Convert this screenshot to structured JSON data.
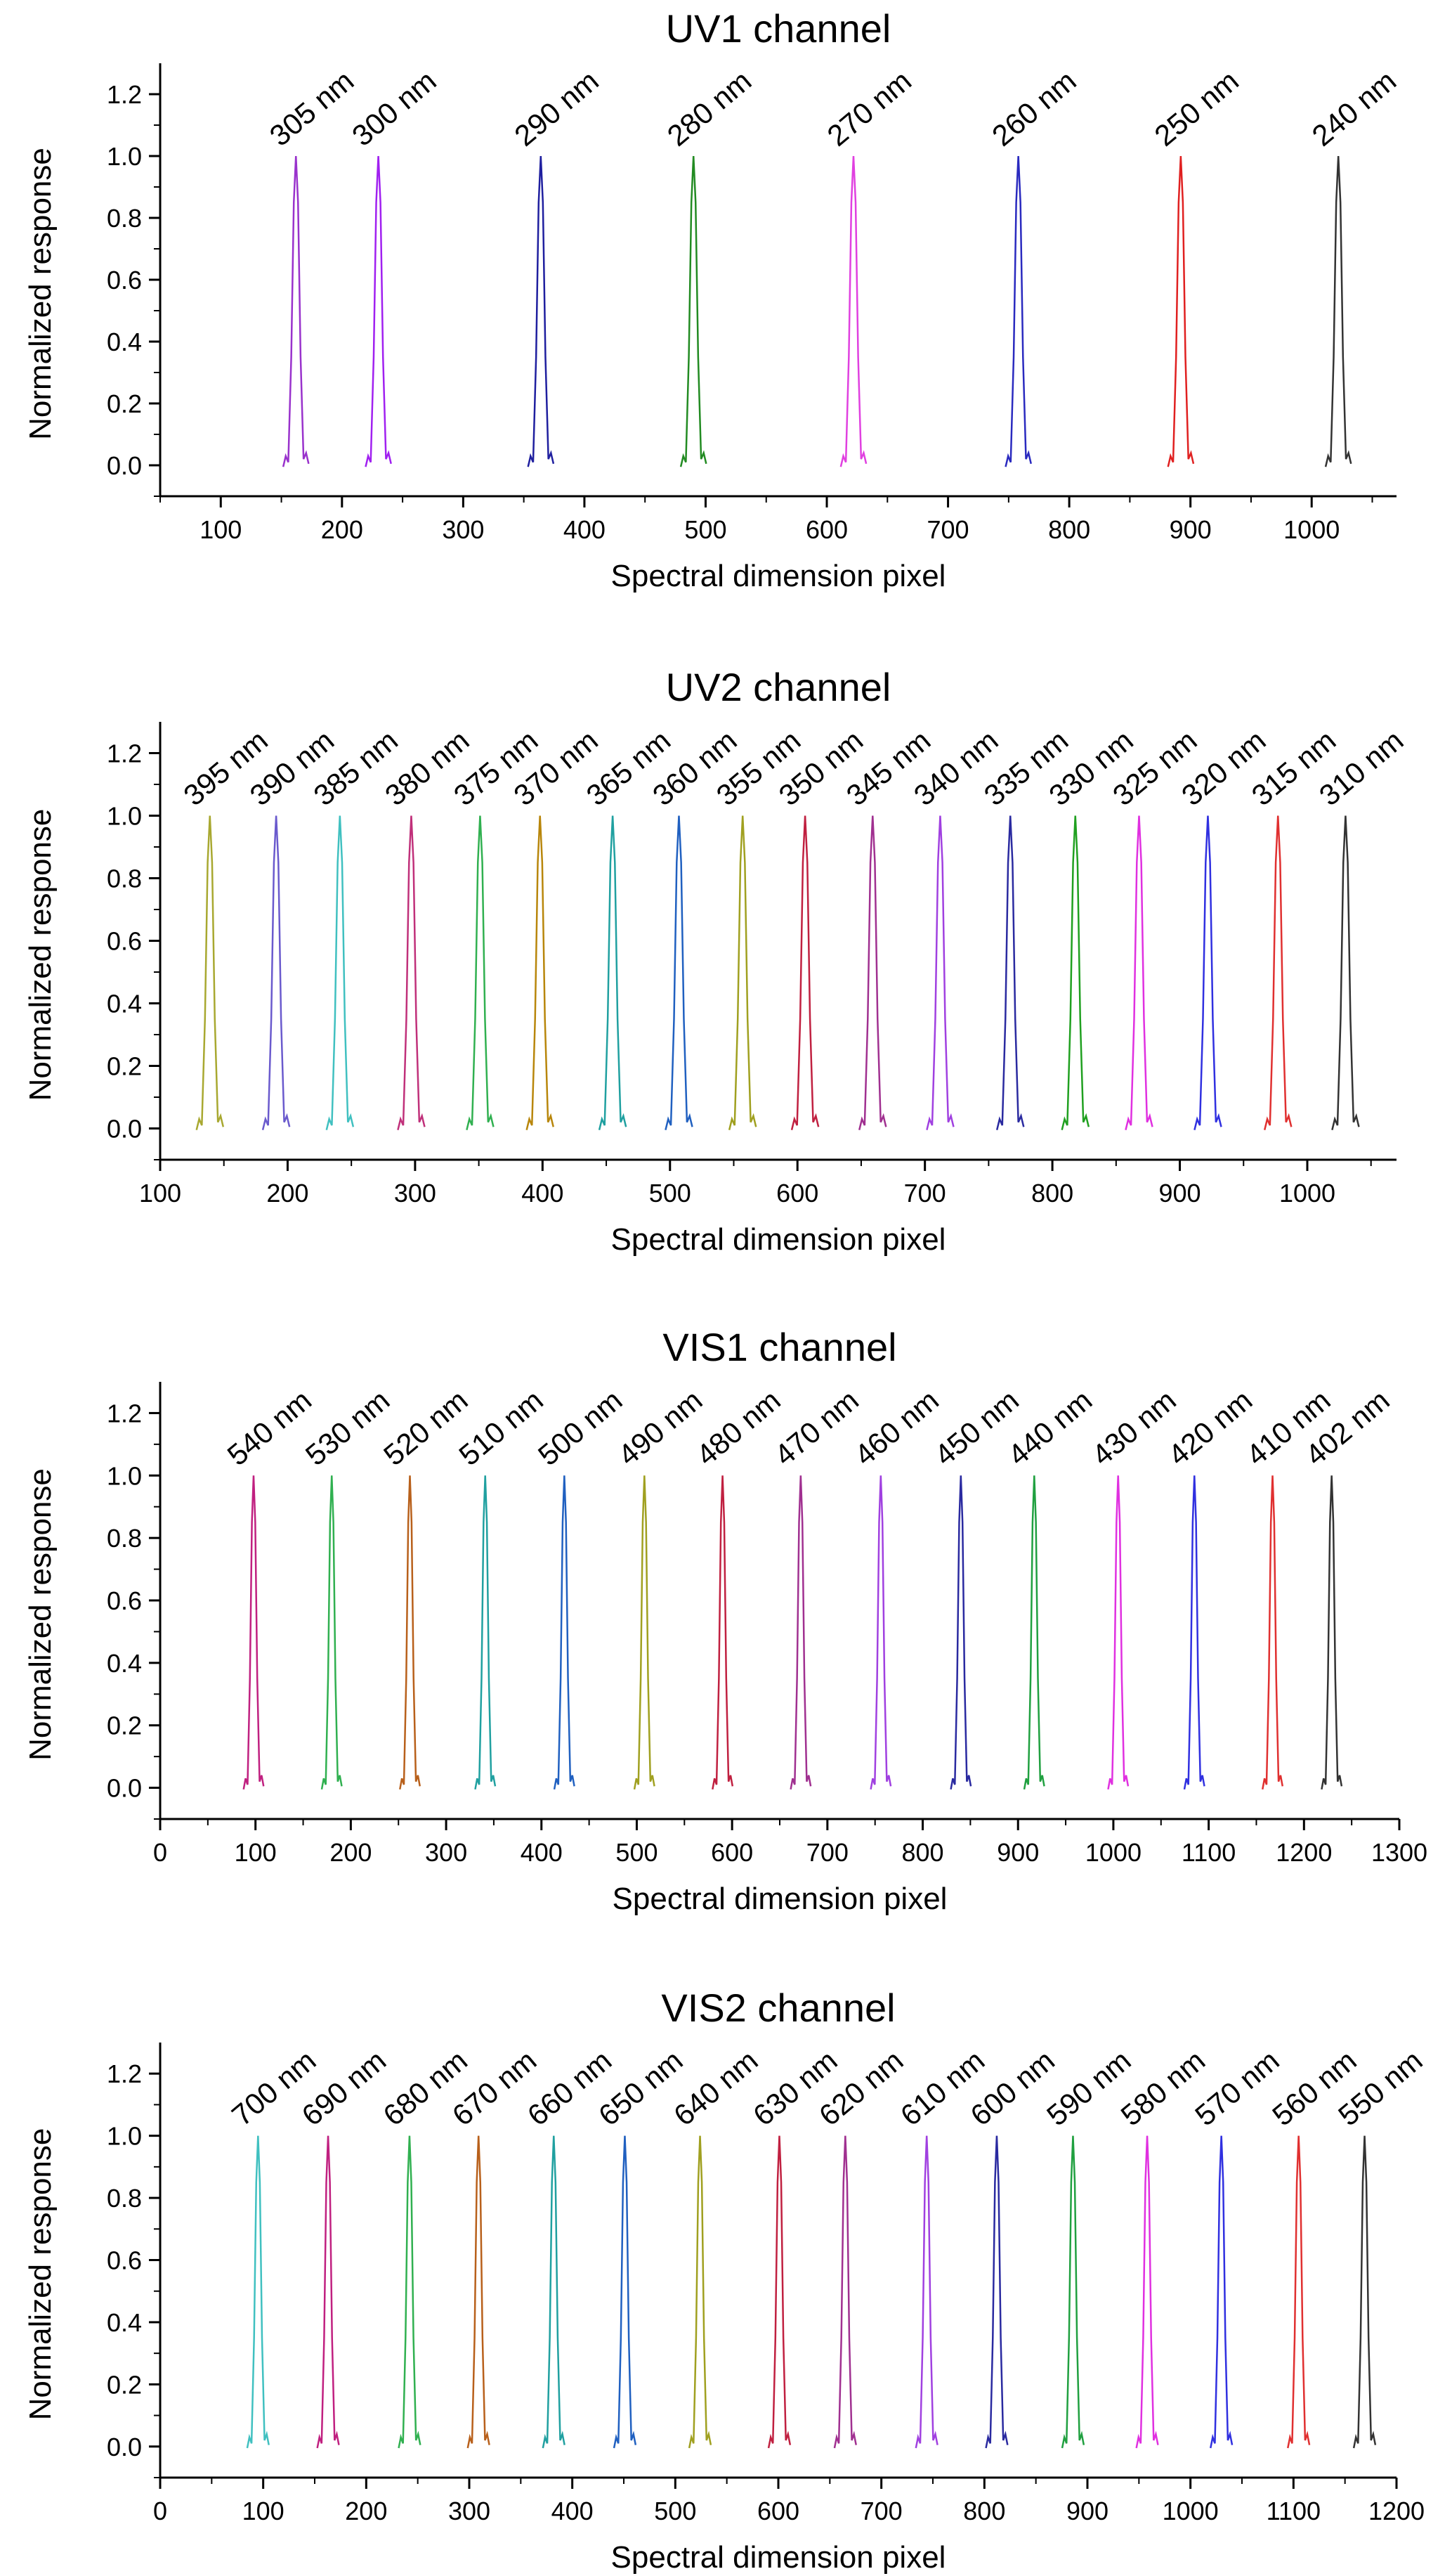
{
  "figure": {
    "line_color_default": "#000000"
  },
  "chart_data": [
    {
      "type": "line",
      "title": "UV1 channel",
      "xlabel": "Spectral dimension pixel",
      "ylabel": "Normalized response",
      "xlim": [
        50,
        1070
      ],
      "ylim": [
        -0.1,
        1.3
      ],
      "xticks": [
        100,
        200,
        300,
        400,
        500,
        600,
        700,
        800,
        900,
        1000
      ],
      "yticks": [
        0.0,
        0.2,
        0.4,
        0.6,
        0.8,
        1.0,
        1.2
      ],
      "grid": false,
      "series": [
        {
          "name": "305 nm",
          "center": 162,
          "peak": 1.0,
          "color": "#9932CC"
        },
        {
          "name": "300 nm",
          "center": 230,
          "peak": 1.0,
          "color": "#A020F0"
        },
        {
          "name": "290 nm",
          "center": 364,
          "peak": 1.0,
          "color": "#1F1F9F"
        },
        {
          "name": "280 nm",
          "center": 490,
          "peak": 1.0,
          "color": "#228B22"
        },
        {
          "name": "270 nm",
          "center": 622,
          "peak": 1.0,
          "color": "#E040E0"
        },
        {
          "name": "260 nm",
          "center": 758,
          "peak": 1.0,
          "color": "#2A2ABF"
        },
        {
          "name": "250 nm",
          "center": 892,
          "peak": 1.0,
          "color": "#E02020"
        },
        {
          "name": "240 nm",
          "center": 1022,
          "peak": 1.0,
          "color": "#333333"
        }
      ]
    },
    {
      "type": "line",
      "title": "UV2 channel",
      "xlabel": "Spectral dimension pixel",
      "ylabel": "Normalized response",
      "xlim": [
        100,
        1070
      ],
      "ylim": [
        -0.1,
        1.3
      ],
      "xticks": [
        100,
        200,
        300,
        400,
        500,
        600,
        700,
        800,
        900,
        1000
      ],
      "yticks": [
        0.0,
        0.2,
        0.4,
        0.6,
        0.8,
        1.0,
        1.2
      ],
      "grid": false,
      "series": [
        {
          "name": "395 nm",
          "center": 139,
          "peak": 1.0,
          "color": "#A8A830"
        },
        {
          "name": "390 nm",
          "center": 191,
          "peak": 1.0,
          "color": "#6A5ACD"
        },
        {
          "name": "385 nm",
          "center": 241,
          "peak": 1.0,
          "color": "#40C0C0"
        },
        {
          "name": "380 nm",
          "center": 297,
          "peak": 1.0,
          "color": "#C0307A"
        },
        {
          "name": "375 nm",
          "center": 351,
          "peak": 1.0,
          "color": "#30B050"
        },
        {
          "name": "370 nm",
          "center": 398,
          "peak": 1.0,
          "color": "#B8860B"
        },
        {
          "name": "365 nm",
          "center": 455,
          "peak": 1.0,
          "color": "#20A0A0"
        },
        {
          "name": "360 nm",
          "center": 507,
          "peak": 1.0,
          "color": "#2060C0"
        },
        {
          "name": "355 nm",
          "center": 557,
          "peak": 1.0,
          "color": "#A0A020"
        },
        {
          "name": "350 nm",
          "center": 606,
          "peak": 1.0,
          "color": "#C02040"
        },
        {
          "name": "345 nm",
          "center": 659,
          "peak": 1.0,
          "color": "#A03090"
        },
        {
          "name": "340 nm",
          "center": 712,
          "peak": 1.0,
          "color": "#A040E0"
        },
        {
          "name": "335 nm",
          "center": 767,
          "peak": 1.0,
          "color": "#2A2AA0"
        },
        {
          "name": "330 nm",
          "center": 818,
          "peak": 1.0,
          "color": "#20A020"
        },
        {
          "name": "325 nm",
          "center": 868,
          "peak": 1.0,
          "color": "#E030E0"
        },
        {
          "name": "320 nm",
          "center": 922,
          "peak": 1.0,
          "color": "#3030E0"
        },
        {
          "name": "315 nm",
          "center": 977,
          "peak": 1.0,
          "color": "#E03030"
        },
        {
          "name": "310 nm",
          "center": 1030,
          "peak": 1.0,
          "color": "#333333"
        }
      ]
    },
    {
      "type": "line",
      "title": "VIS1 channel",
      "xlabel": "Spectral dimension pixel",
      "ylabel": "Normalized response",
      "xlim": [
        0,
        1300
      ],
      "ylim": [
        -0.1,
        1.3
      ],
      "xticks": [
        0,
        100,
        200,
        300,
        400,
        500,
        600,
        700,
        800,
        900,
        1000,
        1100,
        1200,
        1300
      ],
      "yticks": [
        0.0,
        0.2,
        0.4,
        0.6,
        0.8,
        1.0,
        1.2
      ],
      "grid": false,
      "series": [
        {
          "name": "540 nm",
          "center": 98,
          "peak": 1.0,
          "color": "#C02080"
        },
        {
          "name": "530 nm",
          "center": 180,
          "peak": 1.0,
          "color": "#30B050"
        },
        {
          "name": "520 nm",
          "center": 262,
          "peak": 1.0,
          "color": "#B8601B"
        },
        {
          "name": "510 nm",
          "center": 341,
          "peak": 1.0,
          "color": "#20A0A0"
        },
        {
          "name": "500 nm",
          "center": 424,
          "peak": 1.0,
          "color": "#2060C0"
        },
        {
          "name": "490 nm",
          "center": 508,
          "peak": 1.0,
          "color": "#A0A020"
        },
        {
          "name": "480 nm",
          "center": 590,
          "peak": 1.0,
          "color": "#C02040"
        },
        {
          "name": "470 nm",
          "center": 672,
          "peak": 1.0,
          "color": "#A03090"
        },
        {
          "name": "460 nm",
          "center": 756,
          "peak": 1.0,
          "color": "#A040E0"
        },
        {
          "name": "450 nm",
          "center": 840,
          "peak": 1.0,
          "color": "#2A2AA0"
        },
        {
          "name": "440 nm",
          "center": 917,
          "peak": 1.0,
          "color": "#20A040"
        },
        {
          "name": "430 nm",
          "center": 1005,
          "peak": 1.0,
          "color": "#E030E0"
        },
        {
          "name": "420 nm",
          "center": 1085,
          "peak": 1.0,
          "color": "#3030E0"
        },
        {
          "name": "410 nm",
          "center": 1167,
          "peak": 1.0,
          "color": "#E03030"
        },
        {
          "name": "402 nm",
          "center": 1229,
          "peak": 1.0,
          "color": "#333333"
        }
      ]
    },
    {
      "type": "line",
      "title": "VIS2 channel",
      "xlabel": "Spectral dimension pixel",
      "ylabel": "Normalized response",
      "xlim": [
        0,
        1200
      ],
      "ylim": [
        -0.1,
        1.3
      ],
      "xticks": [
        0,
        100,
        200,
        300,
        400,
        500,
        600,
        700,
        800,
        900,
        1000,
        1100,
        1200
      ],
      "yticks": [
        0.0,
        0.2,
        0.4,
        0.6,
        0.8,
        1.0,
        1.2
      ],
      "grid": false,
      "series": [
        {
          "name": "700 nm",
          "center": 95,
          "peak": 1.0,
          "color": "#40C0C0"
        },
        {
          "name": "690 nm",
          "center": 163,
          "peak": 1.0,
          "color": "#C02080"
        },
        {
          "name": "680 nm",
          "center": 242,
          "peak": 1.0,
          "color": "#30B050"
        },
        {
          "name": "670 nm",
          "center": 309,
          "peak": 1.0,
          "color": "#B8601B"
        },
        {
          "name": "660 nm",
          "center": 382,
          "peak": 1.0,
          "color": "#20A0A0"
        },
        {
          "name": "650 nm",
          "center": 451,
          "peak": 1.0,
          "color": "#2060C0"
        },
        {
          "name": "640 nm",
          "center": 524,
          "peak": 1.0,
          "color": "#A0A020"
        },
        {
          "name": "630 nm",
          "center": 601,
          "peak": 1.0,
          "color": "#C02040"
        },
        {
          "name": "620 nm",
          "center": 665,
          "peak": 1.0,
          "color": "#A03090"
        },
        {
          "name": "610 nm",
          "center": 744,
          "peak": 1.0,
          "color": "#A040E0"
        },
        {
          "name": "600 nm",
          "center": 812,
          "peak": 1.0,
          "color": "#2A2AA0"
        },
        {
          "name": "590 nm",
          "center": 886,
          "peak": 1.0,
          "color": "#20A040"
        },
        {
          "name": "580 nm",
          "center": 958,
          "peak": 1.0,
          "color": "#E030E0"
        },
        {
          "name": "570 nm",
          "center": 1030,
          "peak": 1.0,
          "color": "#3030E0"
        },
        {
          "name": "560 nm",
          "center": 1105,
          "peak": 1.0,
          "color": "#E03030"
        },
        {
          "name": "550 nm",
          "center": 1169,
          "peak": 1.0,
          "color": "#333333"
        }
      ]
    }
  ]
}
